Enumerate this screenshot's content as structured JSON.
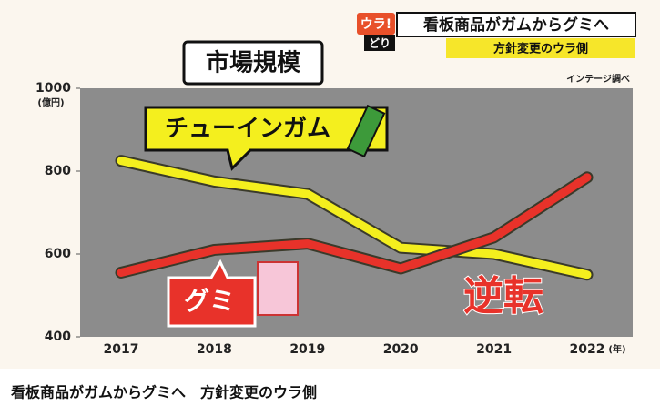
{
  "header": {
    "badge": "ウラ!",
    "badge2": "どり",
    "headline": "看板商品がガムからグミへ",
    "subline": "方針変更のウラ側"
  },
  "caption": "看板商品がガムからグミへ　方針変更のウラ側",
  "chart_data": {
    "type": "line",
    "title": "市場規模",
    "source": "インテージ調べ",
    "ylabel": "(億円)",
    "xlabel": "(年)",
    "annotation": "逆転",
    "categories": [
      "2017",
      "2018",
      "2019",
      "2020",
      "2021",
      "2022"
    ],
    "series": [
      {
        "name": "チューインガム",
        "color": "#f4ef1e",
        "values": [
          825,
          775,
          745,
          615,
          600,
          550
        ]
      },
      {
        "name": "グミ",
        "color": "#e8322a",
        "values": [
          555,
          610,
          625,
          565,
          640,
          785
        ]
      }
    ],
    "ylim": [
      400,
      1000
    ],
    "yticks": [
      400,
      600,
      800,
      1000
    ],
    "grid": false
  }
}
